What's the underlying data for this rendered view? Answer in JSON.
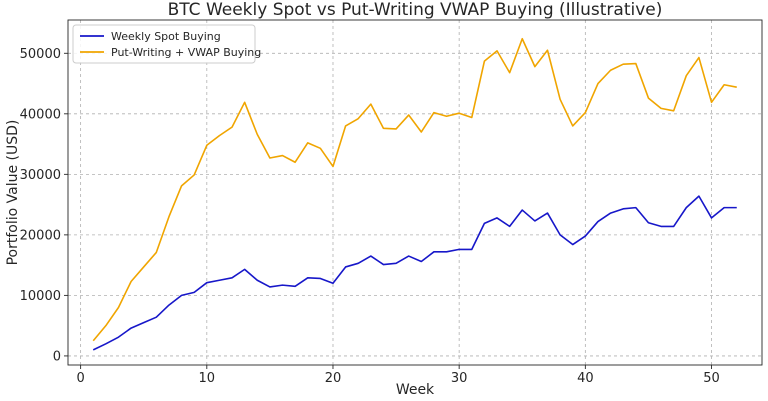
{
  "chart_data": {
    "type": "line",
    "title": "BTC Weekly Spot vs Put-Writing VWAP Buying (Illustrative)",
    "xlabel": "Week",
    "ylabel": "Portfolio Value (USD)",
    "xlim": [
      -1,
      54
    ],
    "ylim": [
      -1500,
      55500
    ],
    "x_ticks": [
      0,
      10,
      20,
      30,
      40,
      50
    ],
    "y_ticks": [
      0,
      10000,
      20000,
      30000,
      40000,
      50000
    ],
    "grid": true,
    "legend_position": "top-left",
    "x": [
      1,
      2,
      3,
      4,
      5,
      6,
      7,
      8,
      9,
      10,
      11,
      12,
      13,
      14,
      15,
      16,
      17,
      18,
      19,
      20,
      21,
      22,
      23,
      24,
      25,
      26,
      27,
      28,
      29,
      30,
      31,
      32,
      33,
      34,
      35,
      36,
      37,
      38,
      39,
      40,
      41,
      42,
      43,
      44,
      45,
      46,
      47,
      48,
      49,
      50,
      51,
      52
    ],
    "series": [
      {
        "name": "Weekly Spot Buying",
        "color": "#1717c9",
        "values": [
          1000,
          2000,
          3100,
          4600,
          5500,
          6400,
          8400,
          10000,
          10500,
          12100,
          12500,
          12900,
          14300,
          12500,
          11400,
          11700,
          11500,
          12900,
          12800,
          12000,
          14700,
          15300,
          16500,
          15100,
          15300,
          16500,
          15600,
          17200,
          17200,
          17600,
          17600,
          21900,
          22800,
          21400,
          24100,
          22300,
          23600,
          20000,
          18400,
          19800,
          22200,
          23600,
          24300,
          24500,
          22000,
          21400,
          21400,
          24500,
          26400,
          22800,
          24500,
          24500
        ]
      },
      {
        "name": "Put-Writing + VWAP Buying",
        "color": "#f0a500",
        "values": [
          2500,
          5000,
          8000,
          12300,
          14700,
          17100,
          23000,
          28100,
          29900,
          34800,
          36400,
          37800,
          41900,
          36600,
          32700,
          33100,
          32000,
          35200,
          34300,
          31300,
          38000,
          39200,
          41600,
          37600,
          37500,
          39800,
          37000,
          40200,
          39600,
          40100,
          39400,
          48700,
          50400,
          46800,
          52400,
          47800,
          50500,
          42400,
          38000,
          40200,
          45000,
          47200,
          48200,
          48300,
          42600,
          40900,
          40500,
          46300,
          49300,
          41900,
          44800,
          44400
        ]
      }
    ]
  }
}
